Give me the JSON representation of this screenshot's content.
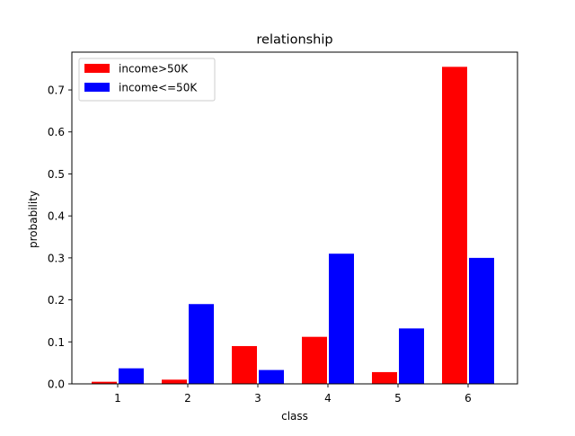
{
  "chart_data": {
    "type": "bar",
    "title": "relationship",
    "xlabel": "class",
    "ylabel": "probability",
    "categories": [
      "1",
      "2",
      "3",
      "4",
      "5",
      "6"
    ],
    "series": [
      {
        "name": "income>50K",
        "color": "#ff0000",
        "values": [
          0.005,
          0.01,
          0.09,
          0.112,
          0.028,
          0.755
        ]
      },
      {
        "name": "income<=50K",
        "color": "#0000ff",
        "values": [
          0.037,
          0.19,
          0.033,
          0.31,
          0.132,
          0.3
        ]
      }
    ],
    "ylim": [
      0,
      0.79
    ],
    "yticks": [
      "0.0",
      "0.1",
      "0.2",
      "0.3",
      "0.4",
      "0.5",
      "0.6",
      "0.7"
    ],
    "legend_position": "top-left",
    "grid": false
  }
}
